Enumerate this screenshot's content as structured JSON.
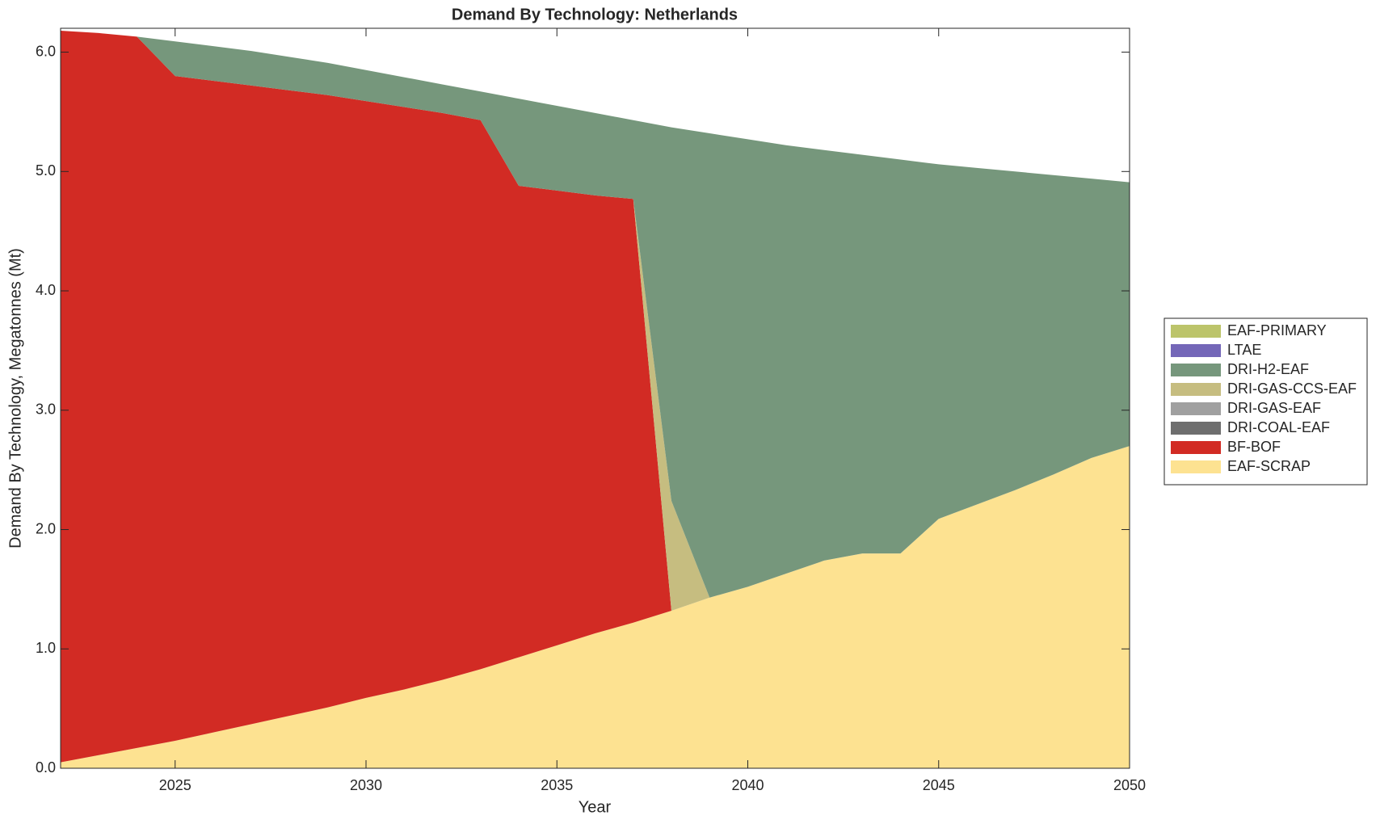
{
  "chart_data": {
    "type": "stacked_area",
    "title": "Demand By Technology: Netherlands",
    "x_label": "Year",
    "y_label": "Demand By Technology, Megatonnes (Mt)",
    "x": [
      2022,
      2023,
      2024,
      2025,
      2026,
      2027,
      2028,
      2029,
      2030,
      2031,
      2032,
      2033,
      2034,
      2035,
      2036,
      2037,
      2038,
      2039,
      2040,
      2041,
      2042,
      2043,
      2044,
      2045,
      2046,
      2047,
      2048,
      2049,
      2050
    ],
    "xlim": [
      2022,
      2050
    ],
    "xticks": [
      2025,
      2030,
      2035,
      2040,
      2045,
      2050
    ],
    "ylim": [
      0,
      6.2
    ],
    "yticks": [
      {
        "value": 0,
        "label": "0.0"
      },
      {
        "value": 1,
        "label": "1.0"
      },
      {
        "value": 2,
        "label": "2.0"
      },
      {
        "value": 3,
        "label": "3.0"
      },
      {
        "value": 4,
        "label": "4.0"
      },
      {
        "value": 5,
        "label": "5.0"
      },
      {
        "value": 6,
        "label": "6.0"
      }
    ],
    "legend_position": "right",
    "series": [
      {
        "name": "EAF-SCRAP",
        "color": "#fde291",
        "values": [
          0.05,
          0.11,
          0.17,
          0.23,
          0.3,
          0.37,
          0.44,
          0.51,
          0.59,
          0.66,
          0.74,
          0.83,
          0.93,
          1.03,
          1.13,
          1.22,
          1.32,
          1.43,
          1.52,
          1.63,
          1.74,
          1.8,
          1.8,
          2.09,
          2.21,
          2.33,
          2.46,
          2.6,
          2.7
        ]
      },
      {
        "name": "BF-BOF",
        "color": "#d22b24",
        "values": [
          6.13,
          6.05,
          5.96,
          5.57,
          5.46,
          5.35,
          5.24,
          5.13,
          5.0,
          4.88,
          4.75,
          4.6,
          3.95,
          3.81,
          3.67,
          3.55,
          0,
          0,
          0,
          0,
          0,
          0,
          0,
          0,
          0,
          0,
          0,
          0,
          0
        ]
      },
      {
        "name": "DRI-COAL-EAF",
        "color": "#6e6e6e",
        "values": [
          0,
          0,
          0,
          0,
          0,
          0,
          0,
          0,
          0,
          0,
          0,
          0,
          0,
          0,
          0,
          0,
          0,
          0,
          0,
          0,
          0,
          0,
          0,
          0,
          0,
          0,
          0,
          0,
          0
        ]
      },
      {
        "name": "DRI-GAS-EAF",
        "color": "#a0a0a0",
        "values": [
          0,
          0,
          0,
          0,
          0,
          0,
          0,
          0,
          0,
          0,
          0,
          0,
          0,
          0,
          0,
          0,
          0,
          0,
          0,
          0,
          0,
          0,
          0,
          0,
          0,
          0,
          0,
          0,
          0
        ]
      },
      {
        "name": "DRI-GAS-CCS-EAF",
        "color": "#c6bd80",
        "values": [
          0,
          0,
          0,
          0,
          0,
          0,
          0,
          0,
          0,
          0,
          0,
          0,
          0,
          0,
          0,
          0,
          0.92,
          0,
          0,
          0,
          0,
          0,
          0,
          0,
          0,
          0,
          0,
          0,
          0
        ]
      },
      {
        "name": "DRI-H2-EAF",
        "color": "#76977c",
        "values": [
          0,
          0,
          0,
          0.29,
          0.29,
          0.29,
          0.28,
          0.27,
          0.26,
          0.25,
          0.24,
          0.24,
          0.73,
          0.71,
          0.69,
          0.66,
          3.13,
          3.89,
          3.75,
          3.59,
          3.44,
          3.34,
          3.3,
          2.97,
          2.82,
          2.67,
          2.51,
          2.34,
          2.21
        ]
      },
      {
        "name": "LTAE",
        "color": "#7467b8",
        "values": [
          0,
          0,
          0,
          0,
          0,
          0,
          0,
          0,
          0,
          0,
          0,
          0,
          0,
          0,
          0,
          0,
          0,
          0,
          0,
          0,
          0,
          0,
          0,
          0,
          0,
          0,
          0,
          0,
          0
        ]
      },
      {
        "name": "EAF-PRIMARY",
        "color": "#bcc46a",
        "values": [
          0,
          0,
          0,
          0,
          0,
          0,
          0,
          0,
          0,
          0,
          0,
          0,
          0,
          0,
          0,
          0,
          0,
          0,
          0,
          0,
          0,
          0,
          0,
          0,
          0,
          0,
          0,
          0,
          0
        ]
      }
    ]
  }
}
